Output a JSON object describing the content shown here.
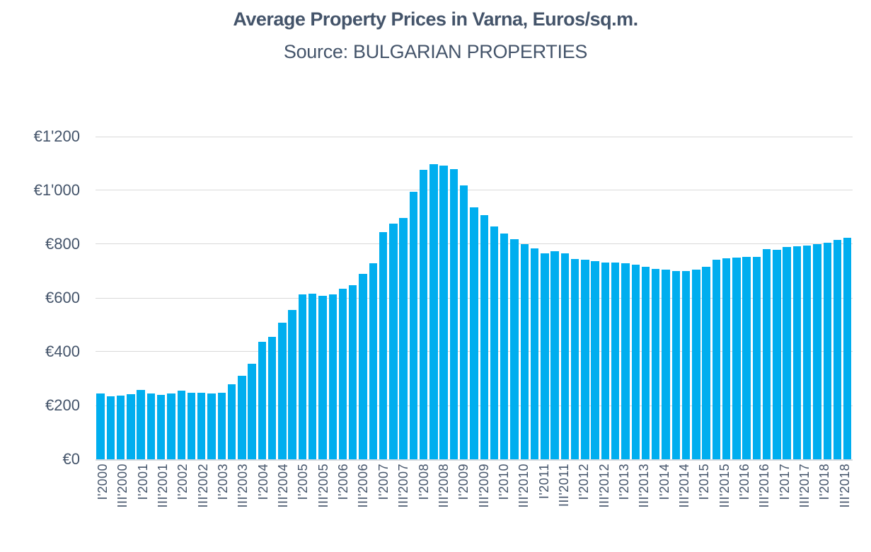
{
  "title": "Average Property Prices in Varna, Euros/sq.m.",
  "subtitle": "Source: BULGARIAN PROPERTIES",
  "colors": {
    "bar": "#00AEEF",
    "gridline": "#D9D9D9",
    "axis_line": "#D6D9DE",
    "text": "#44546A",
    "background": "#FFFFFF"
  },
  "y_axis": {
    "tick_labels": [
      "€1'200",
      "€1'000",
      "€800",
      "€600",
      "€400",
      "€200",
      "€0"
    ],
    "min": 0,
    "max": 1200,
    "step": 200,
    "currency": "EUR"
  },
  "x_axis": {
    "ticks_shown_rule": "every second quarter (I and III of each year), labels rotated 90° reading bottom-to-top",
    "ticks_shown": [
      "I'2000",
      "III'2000",
      "I'2001",
      "III'2001",
      "I'2002",
      "III'2002",
      "I'2003",
      "III'2003",
      "I'2004",
      "III'2004",
      "I'2005",
      "III'2005",
      "I'2006",
      "III'2006",
      "I'2007",
      "III'2007",
      "I'2008",
      "III'2008",
      "I'2009",
      "III'2009",
      "I'2010",
      "III'2010",
      "I'2011",
      "III'2011",
      "I'2012",
      "III'2012",
      "I'2013",
      "III'2013",
      "I'2014",
      "III'2014",
      "I'2015",
      "III'2015",
      "I'2016",
      "III'2016",
      "I'2017",
      "III'2017",
      "I'2018",
      "III'2018"
    ]
  },
  "chart_data": {
    "type": "bar",
    "title": "Average Property Prices in Varna, Euros/sq.m.",
    "subtitle": "Source: BULGARIAN PROPERTIES",
    "xlabel": "",
    "ylabel": "",
    "ylim": [
      0,
      1200
    ],
    "grid": true,
    "legend": false,
    "bar_color": "#00AEEF",
    "categories": [
      "I'2000",
      "II'2000",
      "III'2000",
      "IV'2000",
      "I'2001",
      "II'2001",
      "III'2001",
      "IV'2001",
      "I'2002",
      "II'2002",
      "III'2002",
      "IV'2002",
      "I'2003",
      "II'2003",
      "III'2003",
      "IV'2003",
      "I'2004",
      "II'2004",
      "III'2004",
      "IV'2004",
      "I'2005",
      "II'2005",
      "III'2005",
      "IV'2005",
      "I'2006",
      "II'2006",
      "III'2006",
      "IV'2006",
      "I'2007",
      "II'2007",
      "III'2007",
      "IV'2007",
      "I'2008",
      "II'2008",
      "III'2008",
      "IV'2008",
      "I'2009",
      "II'2009",
      "III'2009",
      "IV'2009",
      "I'2010",
      "II'2010",
      "III'2010",
      "IV'2010",
      "I'2011",
      "II'2011",
      "III'2011",
      "IV'2011",
      "I'2012",
      "II'2012",
      "III'2012",
      "IV'2012",
      "I'2013",
      "II'2013",
      "III'2013",
      "IV'2013",
      "I'2014",
      "II'2014",
      "III'2014",
      "IV'2014",
      "I'2015",
      "II'2015",
      "III'2015",
      "IV'2015",
      "I'2016",
      "II'2016",
      "III'2016",
      "IV'2016",
      "I'2017",
      "II'2017",
      "III'2017",
      "IV'2017",
      "I'2018",
      "II'2018",
      "III'2018"
    ],
    "values": [
      245,
      235,
      236,
      242,
      258,
      244,
      240,
      246,
      254,
      248,
      247,
      246,
      248,
      278,
      310,
      355,
      437,
      455,
      508,
      554,
      614,
      616,
      609,
      614,
      633,
      648,
      690,
      728,
      844,
      876,
      898,
      995,
      1076,
      1097,
      1093,
      1080,
      1018,
      937,
      907,
      866,
      839,
      819,
      800,
      785,
      765,
      774,
      765,
      746,
      742,
      738,
      732,
      732,
      730,
      723,
      715,
      708,
      705,
      701,
      700,
      706,
      715,
      743,
      747,
      749,
      753,
      753,
      781,
      779,
      789,
      791,
      795,
      800,
      806,
      815,
      824
    ]
  }
}
